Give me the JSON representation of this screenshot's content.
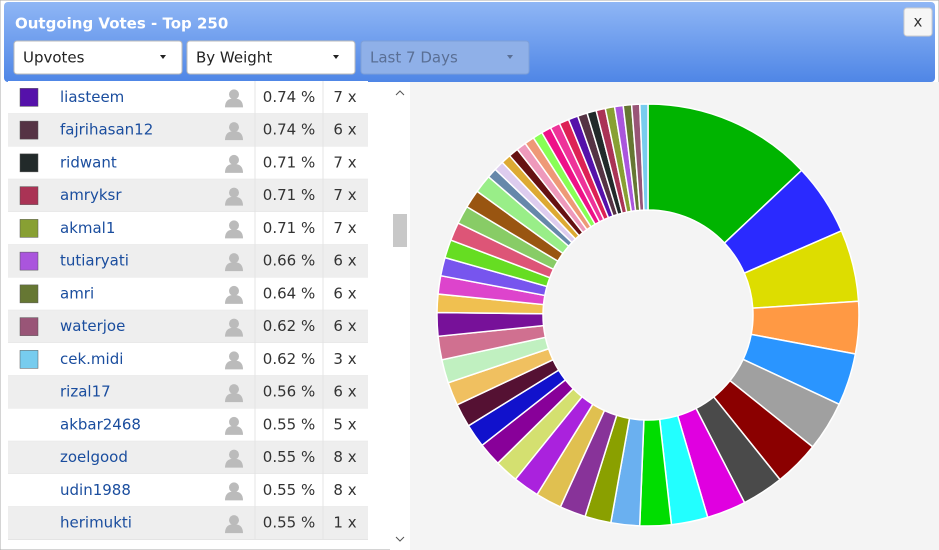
{
  "header": {
    "title": "Outgoing Votes - Top 250",
    "close": "x",
    "filters": [
      "Upvotes",
      "By Weight",
      "Last 7 Days"
    ]
  },
  "table": {
    "rows": [
      {
        "color": "#5511aa",
        "name": "liasteem",
        "percent": "0.74 %",
        "count": "7 x"
      },
      {
        "color": "#553344",
        "name": "fajrihasan12",
        "percent": "0.74 %",
        "count": "6 x"
      },
      {
        "color": "#222a2a",
        "name": "ridwant",
        "percent": "0.71 %",
        "count": "7 x"
      },
      {
        "color": "#aa3355",
        "name": "amryksr",
        "percent": "0.71 %",
        "count": "7 x"
      },
      {
        "color": "#88a033",
        "name": "akmal1",
        "percent": "0.71 %",
        "count": "7 x"
      },
      {
        "color": "#aa55dd",
        "name": "tutiaryati",
        "percent": "0.66 %",
        "count": "6 x"
      },
      {
        "color": "#667733",
        "name": "amri",
        "percent": "0.64 %",
        "count": "6 x"
      },
      {
        "color": "#995577",
        "name": "waterjoe",
        "percent": "0.62 %",
        "count": "6 x"
      },
      {
        "color": "#77ccee",
        "name": "cek.midi",
        "percent": "0.62 %",
        "count": "3 x"
      },
      {
        "name": "rizal17",
        "percent": "0.56 %",
        "count": "6 x"
      },
      {
        "name": "akbar2468",
        "percent": "0.55 %",
        "count": "5 x"
      },
      {
        "name": "zoelgood",
        "percent": "0.55 %",
        "count": "8 x"
      },
      {
        "name": "udin1988",
        "percent": "0.55 %",
        "count": "8 x"
      },
      {
        "name": "herimukti",
        "percent": "0.55 %",
        "count": "1 x"
      }
    ]
  },
  "chart_data": {
    "type": "donut",
    "values": [
      13,
      5.5,
      5.5,
      4,
      4,
      3.8,
      3.5,
      3.2,
      3,
      2.8,
      2.4,
      2.2,
      2,
      2,
      2,
      2,
      1.8,
      1.8,
      1.8,
      1.8,
      1.8,
      1.8,
      1.8,
      1.8,
      1.4,
      1.4,
      1.4,
      1.4,
      1.4,
      1.4,
      1.4,
      1.4,
      0.75,
      0.75,
      0.75,
      0.75,
      0.75,
      0.75,
      0.75,
      0.75,
      0.75,
      0.75,
      0.74,
      0.74,
      0.71,
      0.71,
      0.71,
      0.66,
      0.64,
      0.62,
      0.62
    ],
    "colors": [
      "#00b400",
      "#2a2aff",
      "#dddd00",
      "#ff9944",
      "#2a95ff",
      "#a0a0a0",
      "#8b0000",
      "#4a4a4a",
      "#e000e0",
      "#22ffff",
      "#00dd00",
      "#6ab0f0",
      "#8aa000",
      "#883399",
      "#e0c050",
      "#aa22dd",
      "#d4e070",
      "#880099",
      "#1111cc",
      "#551133",
      "#f0c060",
      "#c0f0c0",
      "#d07090",
      "#771199",
      "#f0c050",
      "#dd44cc",
      "#7755ee",
      "#66dd22",
      "#dd5577",
      "#88cc66",
      "#995511",
      "#99ee88",
      "#6688aa",
      "#ddccee",
      "#ddaa33",
      "#661111",
      "#ee99bb",
      "#ee9977",
      "#88ff55",
      "#ee1188",
      "#ee3399",
      "#dd2255",
      "#5511aa",
      "#553344",
      "#222a2a",
      "#aa3355",
      "#88a033",
      "#aa55dd",
      "#667733",
      "#995577",
      "#77ccee"
    ]
  }
}
